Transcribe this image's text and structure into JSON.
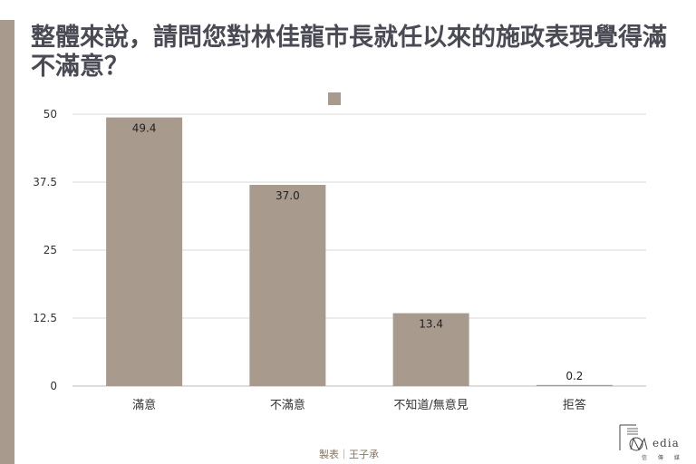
{
  "title": "整體來說，請問您對林佳龍市長就任以來的施政表現覺得滿不滿意？",
  "credit": "製表｜王子承",
  "logo": {
    "text": "edia",
    "sub": "信 傳 媒"
  },
  "colors": {
    "bar": "#a89a8d",
    "accent": "#a89a8d",
    "grid": "#d9d9d9"
  },
  "chart_data": {
    "type": "bar",
    "categories": [
      "滿意",
      "不滿意",
      "不知道/無意見",
      "拒答"
    ],
    "values": [
      49.4,
      37.0,
      13.4,
      0.2
    ],
    "value_labels": [
      "49.4",
      "37.0",
      "13.4",
      "0.2"
    ],
    "yticks": [
      0,
      12.5,
      25,
      37.5,
      50
    ],
    "ytick_labels": [
      "0",
      "12.5",
      "25",
      "37.5",
      "50"
    ],
    "ylim": [
      0,
      50
    ],
    "grid": true,
    "legend": "top-center"
  }
}
